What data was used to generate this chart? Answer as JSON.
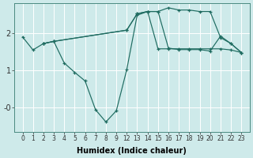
{
  "title": "",
  "xlabel": "Humidex (Indice chaleur)",
  "background_color": "#ceeaea",
  "grid_color": "#ffffff",
  "line_color": "#1e6b60",
  "tick_labels": [
    "0",
    "1",
    "2",
    "3",
    "4",
    "5",
    "6",
    "7",
    "8",
    "9",
    "12",
    "13",
    "14",
    "15",
    "16",
    "17",
    "18",
    "19",
    "20",
    "21",
    "22",
    "23"
  ],
  "lines": [
    {
      "xi": [
        0,
        1,
        2,
        3,
        4,
        5,
        6,
        7,
        8,
        9,
        10,
        11,
        12,
        13,
        14,
        15,
        16,
        17,
        18,
        19,
        20,
        21
      ],
      "y": [
        1.9,
        1.55,
        1.72,
        1.78,
        1.2,
        0.95,
        0.72,
        -0.05,
        -0.38,
        -0.08,
        1.02,
        2.48,
        2.58,
        2.58,
        1.6,
        1.56,
        1.56,
        1.56,
        1.52,
        1.92,
        1.72,
        1.48
      ]
    },
    {
      "xi": [
        2,
        3,
        10,
        11,
        12,
        13,
        14,
        15,
        16,
        17,
        18,
        19,
        20,
        21
      ],
      "y": [
        1.72,
        1.78,
        2.08,
        2.52,
        2.58,
        2.58,
        2.68,
        2.62,
        2.62,
        2.58,
        2.58,
        1.88,
        1.72,
        1.48
      ]
    },
    {
      "xi": [
        2,
        3,
        10,
        11,
        12,
        13,
        14,
        15,
        16,
        17,
        18,
        19,
        20,
        21
      ],
      "y": [
        1.72,
        1.78,
        2.08,
        2.52,
        2.58,
        1.58,
        1.58,
        1.58,
        1.58,
        1.58,
        1.58,
        1.58,
        1.55,
        1.48
      ]
    }
  ],
  "ylim": [
    -0.65,
    2.8
  ],
  "yticks": [
    0.0,
    1.0,
    2.0
  ],
  "ytick_labels": [
    "-0",
    "1",
    "2"
  ]
}
